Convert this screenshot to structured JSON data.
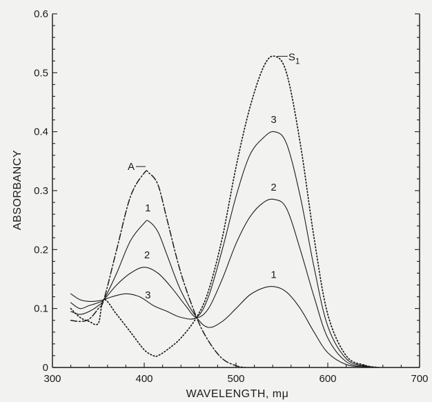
{
  "chart_data": {
    "type": "line",
    "xlabel": "WAVELENGTH, mμ",
    "ylabel": "ABSORBANCY",
    "xlim": [
      300,
      700
    ],
    "ylim": [
      0,
      0.6
    ],
    "x_ticks": [
      "300",
      "400",
      "500",
      "600",
      "700"
    ],
    "y_ticks": [
      "0",
      "0.1",
      "0.2",
      "0.3",
      "0.4",
      "0.5",
      "0.6"
    ],
    "grid": false,
    "series": [
      {
        "name": "S1",
        "style": "dotted",
        "x": [
          320,
          330,
          340,
          350,
          356,
          370,
          385,
          400,
          410,
          415,
          425,
          440,
          457,
          470,
          485,
          500,
          515,
          530,
          542,
          555,
          570,
          585,
          600,
          620,
          640,
          655
        ],
        "y": [
          0.1,
          0.085,
          0.078,
          0.075,
          0.115,
          0.09,
          0.06,
          0.03,
          0.02,
          0.02,
          0.03,
          0.05,
          0.085,
          0.13,
          0.22,
          0.34,
          0.44,
          0.51,
          0.528,
          0.5,
          0.38,
          0.22,
          0.09,
          0.02,
          0.004,
          0.0
        ]
      },
      {
        "name": "A",
        "style": "dash-dot",
        "x": [
          320,
          330,
          340,
          350,
          356,
          370,
          385,
          400,
          405,
          415,
          425,
          440,
          457,
          470,
          485,
          500,
          510
        ],
        "y": [
          0.08,
          0.078,
          0.082,
          0.1,
          0.115,
          0.2,
          0.29,
          0.33,
          0.33,
          0.31,
          0.25,
          0.16,
          0.085,
          0.045,
          0.015,
          0.003,
          0.0
        ]
      },
      {
        "name": "1",
        "style": "solid",
        "x": [
          320,
          330,
          340,
          350,
          356,
          370,
          385,
          400,
          405,
          415,
          425,
          440,
          457,
          470,
          485,
          500,
          515,
          530,
          542,
          555,
          570,
          585,
          600,
          620,
          640,
          655
        ],
        "y": [
          0.095,
          0.09,
          0.095,
          0.105,
          0.115,
          0.16,
          0.215,
          0.245,
          0.248,
          0.23,
          0.19,
          0.13,
          0.085,
          0.068,
          0.078,
          0.1,
          0.123,
          0.135,
          0.137,
          0.128,
          0.1,
          0.06,
          0.025,
          0.005,
          0.001,
          0.0
        ]
      },
      {
        "name": "2",
        "style": "solid",
        "x": [
          320,
          330,
          340,
          350,
          356,
          370,
          385,
          400,
          415,
          430,
          445,
          457,
          470,
          485,
          500,
          515,
          530,
          542,
          555,
          570,
          585,
          600,
          620,
          640,
          655
        ],
        "y": [
          0.11,
          0.1,
          0.105,
          0.11,
          0.115,
          0.14,
          0.16,
          0.17,
          0.16,
          0.135,
          0.105,
          0.085,
          0.1,
          0.15,
          0.21,
          0.255,
          0.28,
          0.285,
          0.27,
          0.2,
          0.12,
          0.05,
          0.01,
          0.002,
          0.0
        ]
      },
      {
        "name": "3",
        "style": "solid",
        "x": [
          320,
          330,
          340,
          350,
          356,
          365,
          380,
          395,
          410,
          425,
          440,
          457,
          470,
          485,
          500,
          515,
          530,
          542,
          555,
          570,
          585,
          600,
          620,
          640,
          655
        ],
        "y": [
          0.125,
          0.115,
          0.112,
          0.113,
          0.115,
          0.12,
          0.125,
          0.12,
          0.105,
          0.095,
          0.085,
          0.085,
          0.12,
          0.2,
          0.29,
          0.36,
          0.39,
          0.4,
          0.38,
          0.29,
          0.17,
          0.07,
          0.015,
          0.003,
          0.0
        ]
      }
    ],
    "curve_labels": [
      {
        "text": "S",
        "sub": "1",
        "x": 545,
        "y": 0.528,
        "series": "S1"
      },
      {
        "text": "A",
        "x": 397,
        "y": 0.335,
        "series": "A"
      },
      {
        "text": "1",
        "x": 404,
        "y": 0.258,
        "series": "1"
      },
      {
        "text": "2",
        "x": 403,
        "y": 0.178,
        "series": "2"
      },
      {
        "text": "3",
        "x": 404,
        "y": 0.11,
        "series": "3"
      },
      {
        "text": "3",
        "x": 541,
        "y": 0.408,
        "series": "3"
      },
      {
        "text": "2",
        "x": 541,
        "y": 0.293,
        "series": "2"
      },
      {
        "text": "1",
        "x": 541,
        "y": 0.145,
        "series": "1"
      }
    ]
  }
}
